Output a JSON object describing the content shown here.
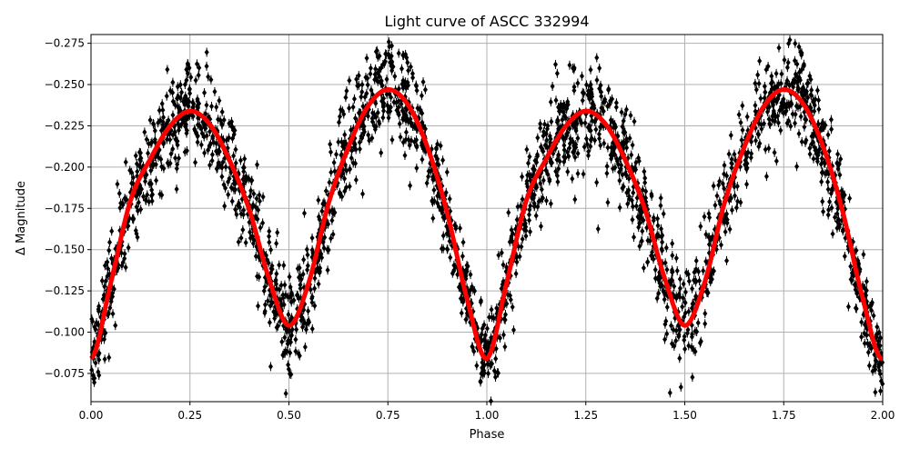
{
  "chart_data": {
    "type": "scatter",
    "title": "Light curve of ASCC 332994",
    "xlabel": "Phase",
    "ylabel": "Δ Magnitude",
    "xlim": [
      0.0,
      2.0
    ],
    "ylim": [
      -0.0579,
      -0.2803
    ],
    "y_inverted": true,
    "grid": true,
    "x_ticks": [
      "0.00",
      "0.25",
      "0.50",
      "0.75",
      "1.00",
      "1.25",
      "1.50",
      "1.75",
      "2.00"
    ],
    "y_ticks": [
      "-0.275",
      "-0.250",
      "-0.225",
      "-0.200",
      "-0.175",
      "-0.150",
      "-0.125",
      "-0.100",
      "-0.075"
    ],
    "observations": {
      "color": "#000000",
      "marker": "diamond with error bars",
      "scatter_spread": 0.012,
      "period_repeat": true
    },
    "series": [
      {
        "color": "#ff0000",
        "style": "line",
        "x": [
          0.0,
          0.05,
          0.1,
          0.15,
          0.2,
          0.25,
          0.3,
          0.35,
          0.4,
          0.45,
          0.5,
          0.55,
          0.6,
          0.65,
          0.7,
          0.75,
          0.8,
          0.85,
          0.9,
          0.95,
          1.0
        ],
        "y": [
          -0.084,
          -0.13,
          -0.18,
          -0.205,
          -0.225,
          -0.234,
          -0.226,
          -0.204,
          -0.174,
          -0.132,
          -0.104,
          -0.13,
          -0.178,
          -0.212,
          -0.237,
          -0.247,
          -0.238,
          -0.212,
          -0.172,
          -0.12,
          -0.084
        ]
      }
    ]
  }
}
